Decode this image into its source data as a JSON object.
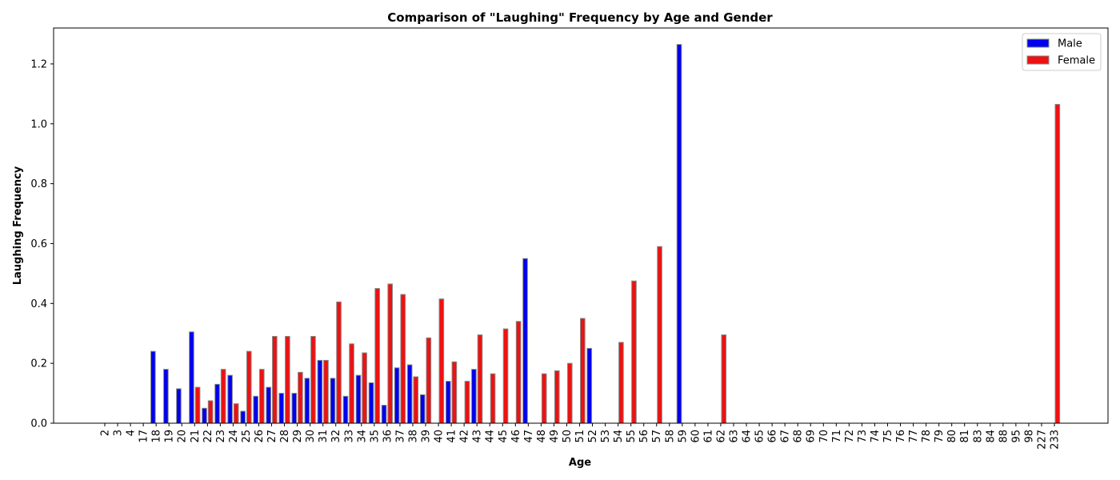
{
  "chart_data": {
    "type": "bar",
    "title": "Comparison of \"Laughing\" Frequency by Age and Gender",
    "xlabel": "Age",
    "ylabel": "Laughing Frequency",
    "ylim": [
      0,
      1.32
    ],
    "yticks": [
      0.0,
      0.2,
      0.4,
      0.6,
      0.8,
      1.0,
      1.2
    ],
    "ytick_labels": [
      "0.0",
      "0.2",
      "0.4",
      "0.6",
      "0.8",
      "1.0",
      "1.2"
    ],
    "grid": false,
    "legend_position": "top-right",
    "categories": [
      "2",
      "3",
      "4",
      "17",
      "18",
      "19",
      "20",
      "21",
      "22",
      "23",
      "24",
      "25",
      "26",
      "27",
      "28",
      "29",
      "30",
      "31",
      "32",
      "33",
      "34",
      "35",
      "36",
      "37",
      "38",
      "39",
      "40",
      "41",
      "42",
      "43",
      "44",
      "45",
      "46",
      "47",
      "48",
      "49",
      "50",
      "51",
      "52",
      "53",
      "54",
      "55",
      "56",
      "57",
      "58",
      "59",
      "60",
      "61",
      "62",
      "63",
      "64",
      "65",
      "66",
      "67",
      "68",
      "69",
      "70",
      "71",
      "72",
      "73",
      "74",
      "75",
      "76",
      "77",
      "78",
      "79",
      "80",
      "81",
      "83",
      "84",
      "88",
      "95",
      "98",
      "227",
      "233"
    ],
    "series": [
      {
        "name": "Male",
        "color": "#0000ee",
        "values": [
          0,
          0,
          0,
          0,
          0.24,
          0.18,
          0.115,
          0.305,
          0.05,
          0.13,
          0.16,
          0.04,
          0.09,
          0.12,
          0.1,
          0.1,
          0.15,
          0.21,
          0.15,
          0.09,
          0.16,
          0.135,
          0.06,
          0.185,
          0.195,
          0.095,
          0,
          0.14,
          0,
          0.18,
          0,
          0,
          0,
          0.55,
          0,
          0,
          0,
          0,
          0.25,
          0,
          0,
          0,
          0,
          0,
          0,
          1.265,
          0,
          0,
          0,
          0,
          0,
          0,
          0,
          0,
          0,
          0,
          0,
          0,
          0,
          0,
          0,
          0,
          0,
          0,
          0,
          0,
          0,
          0,
          0,
          0,
          0,
          0,
          0,
          0,
          0
        ]
      },
      {
        "name": "Female",
        "color": "#ee1111",
        "values": [
          0,
          0,
          0,
          0,
          0,
          0,
          0,
          0.12,
          0.075,
          0.18,
          0.065,
          0.24,
          0.18,
          0.29,
          0.29,
          0.17,
          0.29,
          0.21,
          0.405,
          0.265,
          0.235,
          0.45,
          0.465,
          0.43,
          0.155,
          0.285,
          0.415,
          0.205,
          0.14,
          0.295,
          0.165,
          0.315,
          0.34,
          0,
          0.165,
          0.175,
          0.2,
          0.35,
          0,
          0,
          0.27,
          0.475,
          0,
          0.59,
          0,
          0,
          0,
          0,
          0.295,
          0,
          0,
          0,
          0,
          0,
          0,
          0,
          0,
          0,
          0,
          0,
          0,
          0,
          0,
          0,
          0,
          0,
          0,
          0,
          0,
          0,
          0,
          0,
          0,
          0,
          1.065
        ]
      }
    ]
  }
}
